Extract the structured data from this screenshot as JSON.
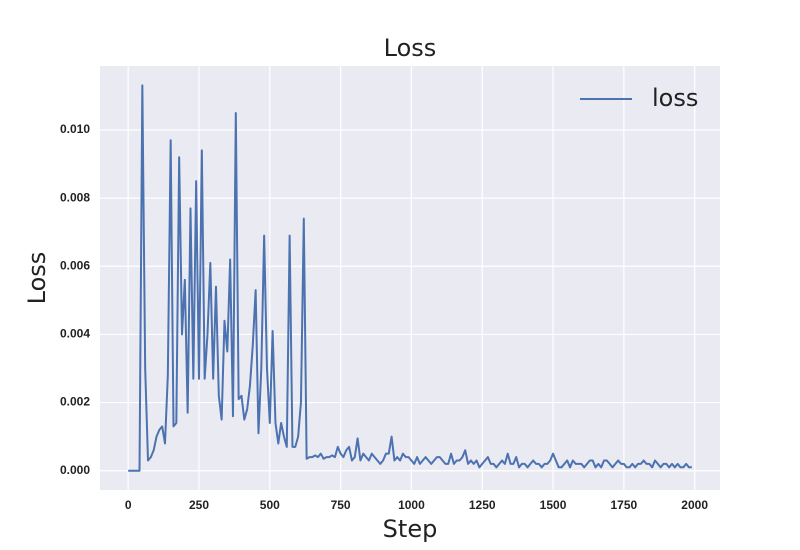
{
  "chart_data": {
    "type": "line",
    "title": "Loss",
    "xlabel": "Step",
    "ylabel": "Loss",
    "x": [
      0,
      10,
      20,
      30,
      40,
      50,
      60,
      70,
      80,
      90,
      100,
      110,
      120,
      130,
      140,
      150,
      160,
      170,
      180,
      190,
      200,
      210,
      220,
      230,
      240,
      250,
      260,
      270,
      280,
      290,
      300,
      310,
      320,
      330,
      340,
      350,
      360,
      370,
      380,
      390,
      400,
      410,
      420,
      430,
      440,
      450,
      460,
      470,
      480,
      490,
      500,
      510,
      520,
      530,
      540,
      550,
      560,
      570,
      580,
      590,
      600,
      610,
      620,
      630,
      640,
      650,
      660,
      670,
      680,
      690,
      700,
      710,
      720,
      730,
      740,
      750,
      760,
      770,
      780,
      790,
      800,
      810,
      820,
      830,
      840,
      850,
      860,
      870,
      880,
      890,
      900,
      910,
      920,
      930,
      940,
      950,
      960,
      970,
      980,
      990,
      1000,
      1010,
      1020,
      1030,
      1040,
      1050,
      1060,
      1070,
      1080,
      1090,
      1100,
      1110,
      1120,
      1130,
      1140,
      1150,
      1160,
      1170,
      1180,
      1190,
      1200,
      1210,
      1220,
      1230,
      1240,
      1250,
      1260,
      1270,
      1280,
      1290,
      1300,
      1310,
      1320,
      1330,
      1340,
      1350,
      1360,
      1370,
      1380,
      1390,
      1400,
      1410,
      1420,
      1430,
      1440,
      1450,
      1460,
      1470,
      1480,
      1490,
      1500,
      1510,
      1520,
      1530,
      1540,
      1550,
      1560,
      1570,
      1580,
      1590,
      1600,
      1610,
      1620,
      1630,
      1640,
      1650,
      1660,
      1670,
      1680,
      1690,
      1700,
      1710,
      1720,
      1730,
      1740,
      1750,
      1760,
      1770,
      1780,
      1790,
      1800,
      1810,
      1820,
      1830,
      1840,
      1850,
      1860,
      1870,
      1880,
      1890,
      1900,
      1910,
      1920,
      1930,
      1940,
      1950,
      1960,
      1970,
      1980,
      1990
    ],
    "series": [
      {
        "name": "loss",
        "color": "#4c72b0",
        "values": [
          0,
          0,
          0,
          0,
          0,
          0.01131,
          0.003,
          0.0003,
          0.0004,
          0.0006,
          0.001,
          0.0012,
          0.0013,
          0.0008,
          0.0028,
          0.0097,
          0.0013,
          0.0014,
          0.0092,
          0.004,
          0.0056,
          0.0017,
          0.0077,
          0.0027,
          0.0085,
          0.0027,
          0.0094,
          0.0027,
          0.004,
          0.0061,
          0.0027,
          0.0054,
          0.0022,
          0.0015,
          0.0044,
          0.0035,
          0.0062,
          0.0016,
          0.0105,
          0.0021,
          0.0022,
          0.0015,
          0.0018,
          0.0025,
          0.0037,
          0.0053,
          0.0011,
          0.003,
          0.0069,
          0.003,
          0.0014,
          0.0041,
          0.0014,
          0.0008,
          0.0014,
          0.001,
          0.0007,
          0.0069,
          0.0007,
          0.0007,
          0.001,
          0.002,
          0.0074,
          0.00035,
          0.0004,
          0.0004,
          0.00045,
          0.0004,
          0.0005,
          0.00035,
          0.0004,
          0.0004,
          0.00045,
          0.0004,
          0.0007,
          0.0005,
          0.0004,
          0.0006,
          0.0007,
          0.0003,
          0.0004,
          0.00095,
          0.0003,
          0.0005,
          0.0004,
          0.0003,
          0.0005,
          0.0004,
          0.0003,
          0.0002,
          0.0003,
          0.0005,
          0.0005,
          0.001,
          0.0003,
          0.0004,
          0.0003,
          0.0005,
          0.0004,
          0.0004,
          0.0003,
          0.0002,
          0.0004,
          0.0002,
          0.0003,
          0.0004,
          0.0003,
          0.0002,
          0.0003,
          0.0004,
          0.0004,
          0.0003,
          0.0002,
          0.0002,
          0.0005,
          0.0002,
          0.0003,
          0.0003,
          0.0004,
          0.0006,
          0.0002,
          0.0003,
          0.0002,
          0.0003,
          0.0001,
          0.0002,
          0.0003,
          0.0004,
          0.0002,
          0.0002,
          0.0001,
          0.0002,
          0.0003,
          0.0002,
          0.0005,
          0.0002,
          0.0002,
          0.0004,
          0.0001,
          0.0002,
          0.0002,
          0.0001,
          0.0002,
          0.0003,
          0.0002,
          0.0002,
          0.0001,
          0.0002,
          0.0002,
          0.0003,
          0.0005,
          0.0003,
          0.0001,
          0.0001,
          0.0002,
          0.0003,
          0.0001,
          0.0003,
          0.0002,
          0.0002,
          0.0002,
          0.0001,
          0.0002,
          0.0003,
          0.0003,
          0.0001,
          0.0002,
          0.0001,
          0.0003,
          0.0003,
          0.0002,
          0.0001,
          0.0002,
          0.0003,
          0.0002,
          0.0002,
          0.0001,
          0.0001,
          0.0002,
          0.0001,
          0.0002,
          0.0002,
          0.0003,
          0.0002,
          0.0002,
          0.0001,
          0.0003,
          0.0002,
          0.0001,
          0.0002,
          0.0002,
          0.0001,
          0.0002,
          0.0001,
          0.0002,
          0.0001,
          0.0001,
          0.0002,
          0.0001,
          0.0001
        ]
      }
    ],
    "xlim": [
      -99.5,
      2089.5
    ],
    "ylim": [
      -0.000566,
      0.011878
    ],
    "xticks": [
      0,
      250,
      500,
      750,
      1000,
      1250,
      1500,
      1750,
      2000
    ],
    "yticks": [
      {
        "value": 0,
        "label": "0.000"
      },
      {
        "value": 0.002,
        "label": "0.002"
      },
      {
        "value": 0.004,
        "label": "0.004"
      },
      {
        "value": 0.006,
        "label": "0.006"
      },
      {
        "value": 0.008,
        "label": "0.008"
      },
      {
        "value": 0.01,
        "label": "0.010"
      }
    ],
    "grid": true,
    "legend": "upper right"
  }
}
